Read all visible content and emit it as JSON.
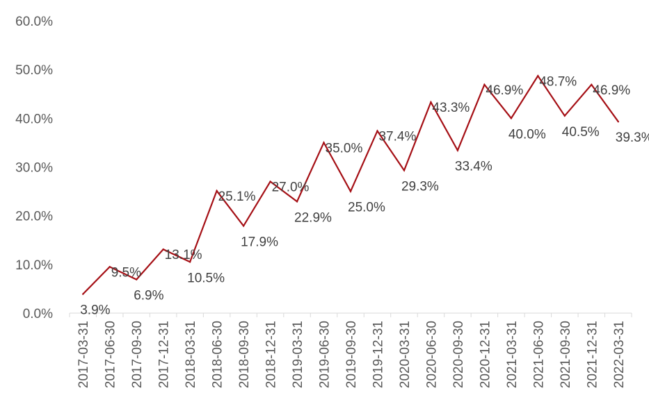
{
  "chart_data": {
    "type": "line",
    "categories": [
      "2017-03-31",
      "2017-06-30",
      "2017-09-30",
      "2017-12-31",
      "2018-03-31",
      "2018-06-30",
      "2018-09-30",
      "2018-12-31",
      "2019-03-31",
      "2019-06-30",
      "2019-09-30",
      "2019-12-31",
      "2020-03-31",
      "2020-06-30",
      "2020-09-30",
      "2020-12-31",
      "2021-03-31",
      "2021-06-30",
      "2021-09-30",
      "2021-12-31",
      "2022-03-31"
    ],
    "series": [
      {
        "values": [
          3.9,
          9.5,
          6.9,
          13.1,
          10.5,
          25.1,
          17.9,
          27.0,
          22.9,
          35.0,
          25.0,
          37.4,
          29.3,
          43.3,
          33.4,
          46.9,
          40.0,
          48.7,
          40.5,
          46.9,
          39.3
        ],
        "labels": [
          "3.9%",
          "9.5%",
          "6.9%",
          "13.1%",
          "10.5%",
          "25.1%",
          "17.9%",
          "27.0%",
          "22.9%",
          "35.0%",
          "25.0%",
          "37.4%",
          "29.3%",
          "43.3%",
          "33.4%",
          "46.9%",
          "40.0%",
          "48.7%",
          "40.5%",
          "46.9%",
          "39.3%"
        ],
        "color": "#a50f15"
      }
    ],
    "y_ticks": [
      "0.0%",
      "10.0%",
      "20.0%",
      "30.0%",
      "40.0%",
      "50.0%",
      "60.0%"
    ],
    "ylim": [
      0,
      60
    ],
    "grid": false,
    "legend": "none"
  }
}
